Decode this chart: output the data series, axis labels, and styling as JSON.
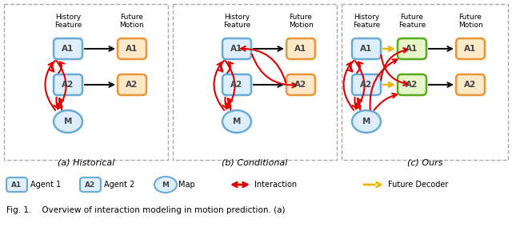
{
  "fig_width": 6.4,
  "fig_height": 2.99,
  "dpi": 100,
  "bg_color": "#ffffff",
  "blue_edge": "#6aaad4",
  "blue_fill": "#ddeeff",
  "orange_edge": "#e8963a",
  "orange_fill": "#fde8c8",
  "green_edge": "#5aaa20",
  "green_fill": "#e8f5c8",
  "red": "#dd0000",
  "black": "#111111",
  "gold": "#e8b800",
  "dash_color": "#aaaaaa",
  "sub_labels": [
    "(a) Historical",
    "(b) Conditional",
    "(c) Ours"
  ],
  "caption": "Fig. 1.    Overview of interaction modeling in motion prediction. (a)"
}
